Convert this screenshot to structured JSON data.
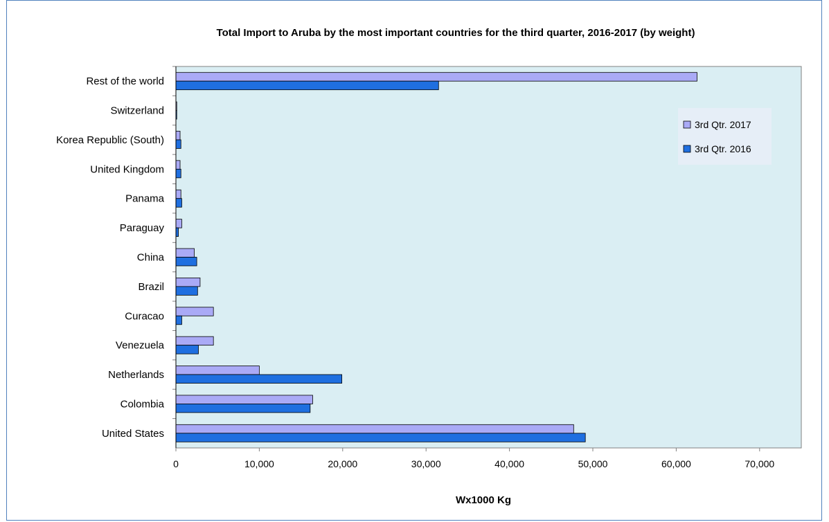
{
  "chart_data": {
    "type": "bar",
    "orientation": "horizontal",
    "title": "Total Import to Aruba  by the most important countries for the third quarter, 2016-2017 (by weight)",
    "xlabel": "Wx1000 Kg",
    "ylabel": "",
    "xlim": [
      0,
      75000
    ],
    "xticks": [
      0,
      10000,
      20000,
      30000,
      40000,
      50000,
      60000,
      70000
    ],
    "xtick_labels": [
      "0",
      "10,000",
      "20,000",
      "30,000",
      "40,000",
      "50,000",
      "60,000",
      "70,000"
    ],
    "grid": false,
    "legend_position": "right",
    "categories": [
      "United States",
      "Colombia",
      "Netherlands",
      "Venezuela",
      "Curacao",
      "Brazil",
      "China",
      "Paraguay",
      "Panama",
      "United Kingdom",
      "Korea Republic (South)",
      "Switzerland",
      "Rest of the world"
    ],
    "series": [
      {
        "name": "3rd Qtr. 2017",
        "color": "#aaaaf6",
        "values": [
          47700,
          16400,
          10000,
          4500,
          4500,
          2900,
          2200,
          700,
          600,
          500,
          500,
          100,
          62500
        ]
      },
      {
        "name": "3rd Qtr. 2016",
        "color": "#1f6fe0",
        "values": [
          49100,
          16100,
          19900,
          2700,
          700,
          2600,
          2500,
          300,
          700,
          600,
          600,
          100,
          31500
        ]
      }
    ],
    "plot_background": "#daeef3"
  }
}
